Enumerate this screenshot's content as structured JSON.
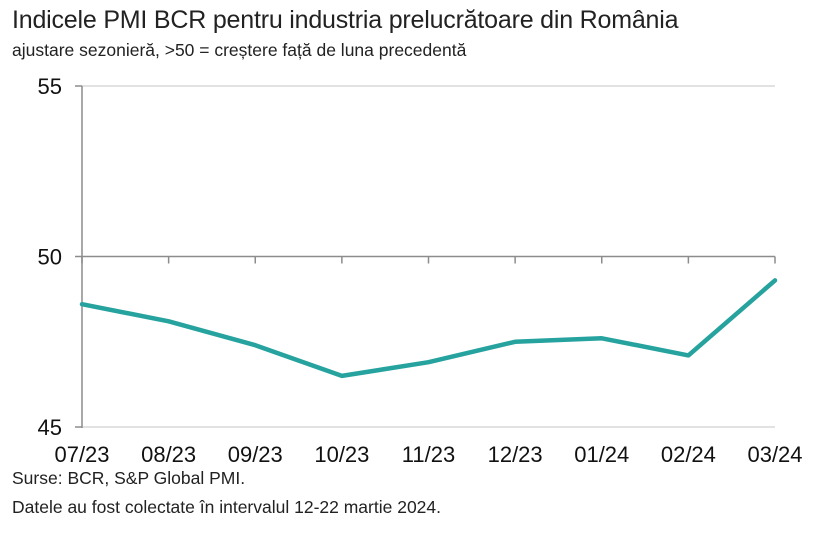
{
  "header": {
    "title": "Indicele PMI BCR pentru industria prelucrătoare din România",
    "subtitle": "ajustare sezonieră, >50 = creștere față de luna precedentă"
  },
  "footer": {
    "sources": "Surse: BCR, S&P Global PMI.",
    "note": "Datele au fost colectate în intervalul 12-22 martie 2024."
  },
  "colors": {
    "line": "#26a39f",
    "axis": "#8c8c8c",
    "gridline": "#d9d9d9"
  },
  "chart_data": {
    "type": "line",
    "title": "Indicele PMI BCR pentru industria prelucrătoare din România",
    "subtitle": "ajustare sezonieră, >50 = creștere față de luna precedentă",
    "xlabel": "",
    "ylabel": "",
    "categories": [
      "07/23",
      "08/23",
      "09/23",
      "10/23",
      "11/23",
      "12/23",
      "01/24",
      "02/24",
      "03/24"
    ],
    "series": [
      {
        "name": "PMI BCR",
        "values": [
          48.6,
          48.1,
          47.4,
          46.5,
          46.9,
          47.5,
          47.6,
          47.1,
          49.3
        ]
      }
    ],
    "yticks": [
      "45",
      "50",
      "55"
    ],
    "ylim": [
      45,
      55
    ],
    "grid": false,
    "reference_line": 50,
    "legend": "none"
  }
}
